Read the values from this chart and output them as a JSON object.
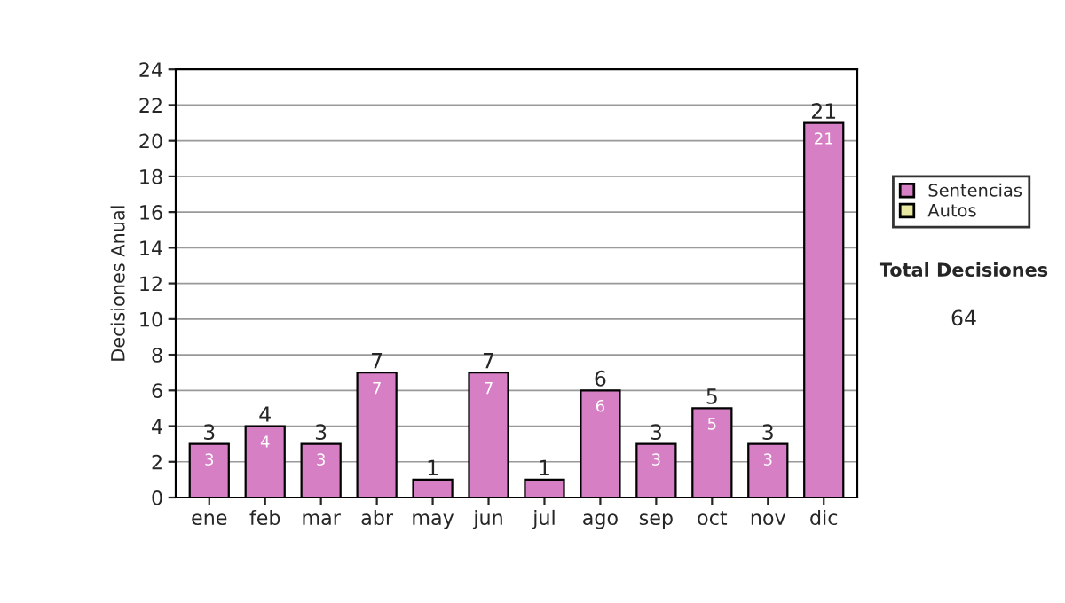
{
  "chart_data": {
    "type": "bar",
    "stacked": true,
    "ylabel": "Decisiones Anual",
    "categories": [
      "ene",
      "feb",
      "mar",
      "abr",
      "may",
      "jun",
      "jul",
      "ago",
      "sep",
      "oct",
      "nov",
      "dic"
    ],
    "series": [
      {
        "name": "Sentencias",
        "color": "#d67fc4",
        "values": [
          3,
          4,
          3,
          7,
          1,
          7,
          1,
          6,
          3,
          5,
          3,
          21
        ],
        "value_labels": [
          "3",
          "4",
          "3",
          "7",
          null,
          "7",
          null,
          "6",
          "3",
          "5",
          "3",
          "21"
        ]
      },
      {
        "name": "Autos",
        "color": "#e8e8a0",
        "values": [
          0,
          0,
          0,
          0,
          0,
          0,
          0,
          0,
          0,
          0,
          0,
          0
        ]
      }
    ],
    "totals": [
      "3",
      "4",
      "3",
      "7",
      "1",
      "7",
      "1",
      "6",
      "3",
      "5",
      "3",
      "21"
    ],
    "ylim": [
      0,
      24
    ],
    "yticks": [
      0,
      2,
      4,
      6,
      8,
      10,
      12,
      14,
      16,
      18,
      20,
      22,
      24
    ],
    "grid": "y",
    "legend": "right",
    "annotations": [
      "Total Decisiones",
      "64"
    ]
  }
}
